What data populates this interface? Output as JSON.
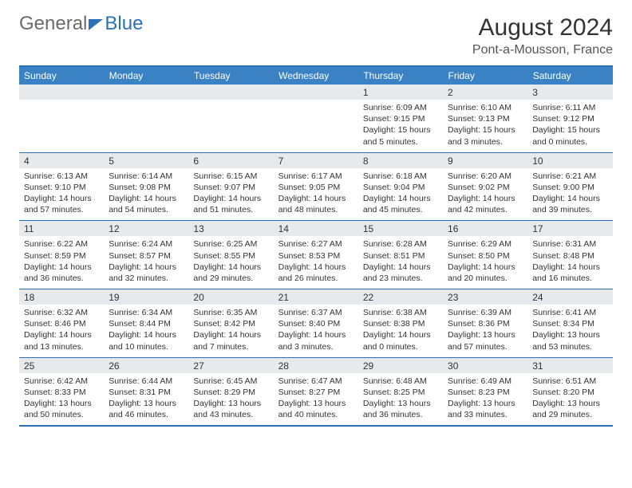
{
  "logo": {
    "part1": "General",
    "part2": "Blue"
  },
  "title": "August 2024",
  "location": "Pont-a-Mousson, France",
  "colors": {
    "header_bg": "#3a82c4",
    "border": "#2a71b8",
    "daynum_bg": "#e7e9ec",
    "text": "#333333",
    "logo_gray": "#6b6b6b",
    "logo_blue": "#2a71b8",
    "page_bg": "#ffffff"
  },
  "day_headers": [
    "Sunday",
    "Monday",
    "Tuesday",
    "Wednesday",
    "Thursday",
    "Friday",
    "Saturday"
  ],
  "weeks": [
    [
      null,
      null,
      null,
      null,
      {
        "n": "1",
        "sr": "6:09 AM",
        "ss": "9:15 PM",
        "dl": "15 hours and 5 minutes."
      },
      {
        "n": "2",
        "sr": "6:10 AM",
        "ss": "9:13 PM",
        "dl": "15 hours and 3 minutes."
      },
      {
        "n": "3",
        "sr": "6:11 AM",
        "ss": "9:12 PM",
        "dl": "15 hours and 0 minutes."
      }
    ],
    [
      {
        "n": "4",
        "sr": "6:13 AM",
        "ss": "9:10 PM",
        "dl": "14 hours and 57 minutes."
      },
      {
        "n": "5",
        "sr": "6:14 AM",
        "ss": "9:08 PM",
        "dl": "14 hours and 54 minutes."
      },
      {
        "n": "6",
        "sr": "6:15 AM",
        "ss": "9:07 PM",
        "dl": "14 hours and 51 minutes."
      },
      {
        "n": "7",
        "sr": "6:17 AM",
        "ss": "9:05 PM",
        "dl": "14 hours and 48 minutes."
      },
      {
        "n": "8",
        "sr": "6:18 AM",
        "ss": "9:04 PM",
        "dl": "14 hours and 45 minutes."
      },
      {
        "n": "9",
        "sr": "6:20 AM",
        "ss": "9:02 PM",
        "dl": "14 hours and 42 minutes."
      },
      {
        "n": "10",
        "sr": "6:21 AM",
        "ss": "9:00 PM",
        "dl": "14 hours and 39 minutes."
      }
    ],
    [
      {
        "n": "11",
        "sr": "6:22 AM",
        "ss": "8:59 PM",
        "dl": "14 hours and 36 minutes."
      },
      {
        "n": "12",
        "sr": "6:24 AM",
        "ss": "8:57 PM",
        "dl": "14 hours and 32 minutes."
      },
      {
        "n": "13",
        "sr": "6:25 AM",
        "ss": "8:55 PM",
        "dl": "14 hours and 29 minutes."
      },
      {
        "n": "14",
        "sr": "6:27 AM",
        "ss": "8:53 PM",
        "dl": "14 hours and 26 minutes."
      },
      {
        "n": "15",
        "sr": "6:28 AM",
        "ss": "8:51 PM",
        "dl": "14 hours and 23 minutes."
      },
      {
        "n": "16",
        "sr": "6:29 AM",
        "ss": "8:50 PM",
        "dl": "14 hours and 20 minutes."
      },
      {
        "n": "17",
        "sr": "6:31 AM",
        "ss": "8:48 PM",
        "dl": "14 hours and 16 minutes."
      }
    ],
    [
      {
        "n": "18",
        "sr": "6:32 AM",
        "ss": "8:46 PM",
        "dl": "14 hours and 13 minutes."
      },
      {
        "n": "19",
        "sr": "6:34 AM",
        "ss": "8:44 PM",
        "dl": "14 hours and 10 minutes."
      },
      {
        "n": "20",
        "sr": "6:35 AM",
        "ss": "8:42 PM",
        "dl": "14 hours and 7 minutes."
      },
      {
        "n": "21",
        "sr": "6:37 AM",
        "ss": "8:40 PM",
        "dl": "14 hours and 3 minutes."
      },
      {
        "n": "22",
        "sr": "6:38 AM",
        "ss": "8:38 PM",
        "dl": "14 hours and 0 minutes."
      },
      {
        "n": "23",
        "sr": "6:39 AM",
        "ss": "8:36 PM",
        "dl": "13 hours and 57 minutes."
      },
      {
        "n": "24",
        "sr": "6:41 AM",
        "ss": "8:34 PM",
        "dl": "13 hours and 53 minutes."
      }
    ],
    [
      {
        "n": "25",
        "sr": "6:42 AM",
        "ss": "8:33 PM",
        "dl": "13 hours and 50 minutes."
      },
      {
        "n": "26",
        "sr": "6:44 AM",
        "ss": "8:31 PM",
        "dl": "13 hours and 46 minutes."
      },
      {
        "n": "27",
        "sr": "6:45 AM",
        "ss": "8:29 PM",
        "dl": "13 hours and 43 minutes."
      },
      {
        "n": "28",
        "sr": "6:47 AM",
        "ss": "8:27 PM",
        "dl": "13 hours and 40 minutes."
      },
      {
        "n": "29",
        "sr": "6:48 AM",
        "ss": "8:25 PM",
        "dl": "13 hours and 36 minutes."
      },
      {
        "n": "30",
        "sr": "6:49 AM",
        "ss": "8:23 PM",
        "dl": "13 hours and 33 minutes."
      },
      {
        "n": "31",
        "sr": "6:51 AM",
        "ss": "8:20 PM",
        "dl": "13 hours and 29 minutes."
      }
    ]
  ],
  "labels": {
    "sunrise": "Sunrise: ",
    "sunset": "Sunset: ",
    "daylight": "Daylight: "
  }
}
